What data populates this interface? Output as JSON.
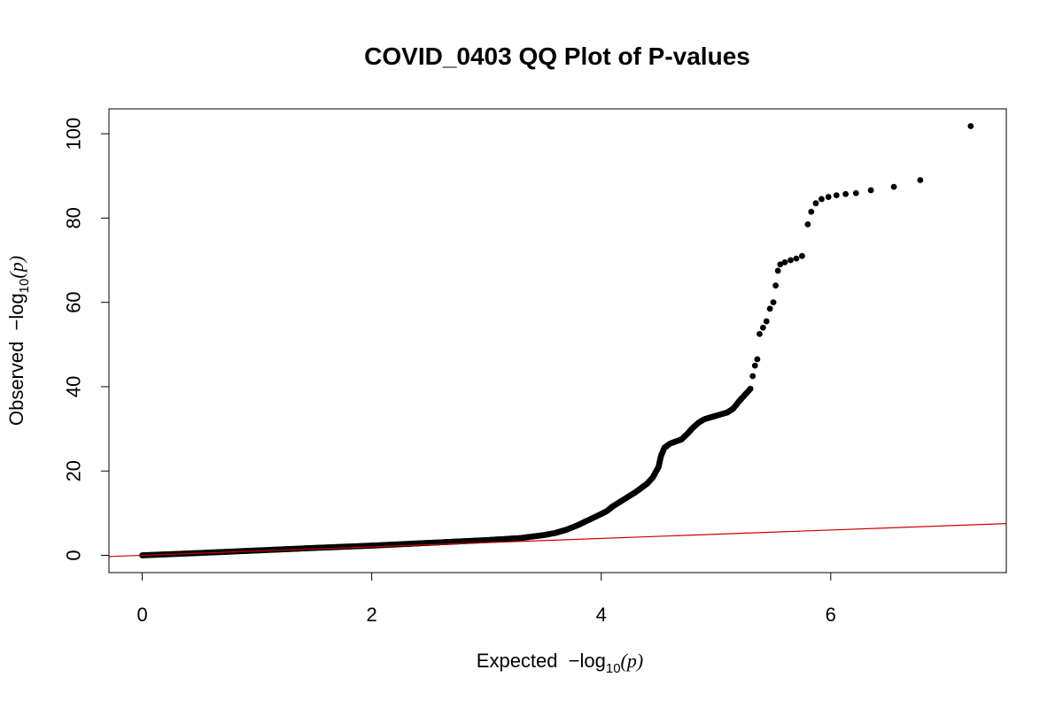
{
  "chart_data": {
    "type": "scatter",
    "title": "COVID_0403 QQ Plot of P-values",
    "xlabel": {
      "prefix": "Expected",
      "minus": "−",
      "log": "log",
      "base": "10",
      "open": "(",
      "var": "p",
      "close": ")"
    },
    "ylabel": {
      "prefix": "Observed",
      "minus": "−",
      "log": "log",
      "base": "10",
      "open": "(",
      "var": "p",
      "close": ")"
    },
    "xlim": [
      -0.29,
      7.53
    ],
    "ylim": [
      -4.1,
      105.9
    ],
    "x_ticks": [
      0,
      2,
      4,
      6
    ],
    "y_ticks": [
      0,
      20,
      40,
      60,
      80,
      100
    ],
    "x_tick_labels": [
      "0",
      "2",
      "4",
      "6"
    ],
    "y_tick_labels": [
      "0",
      "20",
      "40",
      "60",
      "80",
      "100"
    ],
    "grid": false,
    "point_color": "#000000",
    "reference_line": {
      "slope": 1,
      "intercept": 0,
      "color": "#cc0000"
    },
    "curve_points": [
      [
        0,
        0
      ],
      [
        0.5,
        0.55
      ],
      [
        1.0,
        1.15
      ],
      [
        1.5,
        1.75
      ],
      [
        2.0,
        2.3
      ],
      [
        2.5,
        2.95
      ],
      [
        3.0,
        3.6
      ],
      [
        3.3,
        4.1
      ],
      [
        3.5,
        4.8
      ],
      [
        3.6,
        5.3
      ],
      [
        3.7,
        6.1
      ],
      [
        3.8,
        7.2
      ],
      [
        3.9,
        8.5
      ],
      [
        4.0,
        9.8
      ],
      [
        4.05,
        10.5
      ],
      [
        4.1,
        11.6
      ],
      [
        4.2,
        13.3
      ],
      [
        4.3,
        15.0
      ],
      [
        4.4,
        17.0
      ],
      [
        4.45,
        18.5
      ],
      [
        4.5,
        21.0
      ],
      [
        4.52,
        23.5
      ],
      [
        4.55,
        25.5
      ],
      [
        4.6,
        26.5
      ],
      [
        4.7,
        27.5
      ],
      [
        4.75,
        28.8
      ],
      [
        4.8,
        30.3
      ],
      [
        4.85,
        31.5
      ],
      [
        4.9,
        32.3
      ],
      [
        5.0,
        33.1
      ],
      [
        5.1,
        33.9
      ],
      [
        5.15,
        34.8
      ],
      [
        5.2,
        36.5
      ],
      [
        5.25,
        38.0
      ],
      [
        5.3,
        39.5
      ]
    ],
    "sparse_points": [
      [
        5.32,
        42.5
      ],
      [
        5.34,
        45.0
      ],
      [
        5.36,
        46.5
      ],
      [
        5.38,
        52.5
      ],
      [
        5.41,
        54.0
      ],
      [
        5.44,
        55.5
      ],
      [
        5.47,
        58.5
      ],
      [
        5.5,
        60.0
      ],
      [
        5.52,
        64.0
      ],
      [
        5.54,
        67.5
      ],
      [
        5.56,
        69.0
      ],
      [
        5.6,
        69.5
      ],
      [
        5.65,
        70.0
      ],
      [
        5.7,
        70.4
      ],
      [
        5.75,
        71.0
      ],
      [
        5.8,
        78.5
      ],
      [
        5.83,
        81.5
      ],
      [
        5.87,
        83.5
      ],
      [
        5.92,
        84.5
      ],
      [
        5.98,
        85.0
      ],
      [
        6.05,
        85.4
      ],
      [
        6.13,
        85.7
      ],
      [
        6.22,
        85.9
      ],
      [
        6.35,
        86.6
      ],
      [
        6.55,
        87.4
      ],
      [
        6.78,
        89.0
      ],
      [
        7.22,
        101.8
      ]
    ]
  }
}
